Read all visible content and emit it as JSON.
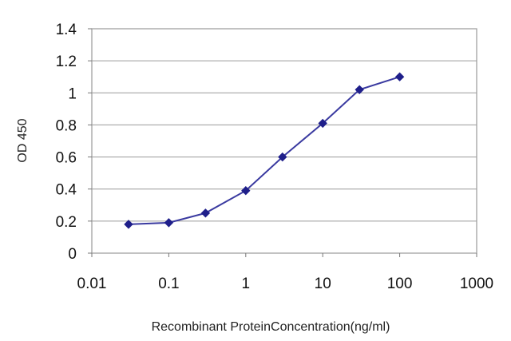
{
  "chart_data": {
    "type": "line",
    "title": "",
    "xlabel": "Recombinant ProteinConcentration(ng/ml)",
    "ylabel": "OD 450",
    "x_scale": "log",
    "xlim": [
      0.01,
      1000
    ],
    "ylim": [
      0,
      1.4
    ],
    "x_ticks": [
      "0.01",
      "0.1",
      "1",
      "10",
      "100",
      "1000"
    ],
    "y_ticks": [
      "0",
      "0.2",
      "0.4",
      "0.6",
      "0.8",
      "1",
      "1.2",
      "1.4"
    ],
    "grid": "horizontal",
    "legend": "none",
    "series": [
      {
        "x": [
          0.03,
          0.1,
          0.3,
          1,
          3,
          10,
          30,
          100
        ],
        "y": [
          0.18,
          0.19,
          0.25,
          0.39,
          0.6,
          0.81,
          1.02,
          1.1
        ],
        "color": "#3a3aa0"
      }
    ]
  }
}
